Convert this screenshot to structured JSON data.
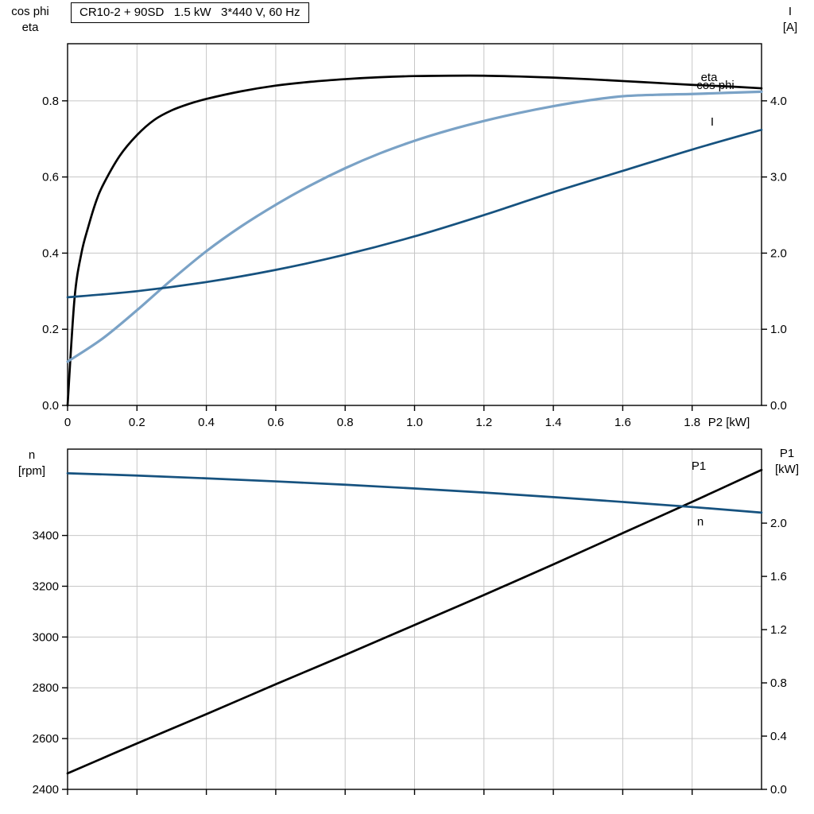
{
  "title_box": {
    "text": "CR10-2 + 90SD   1.5 kW   3*440 V, 60 Hz"
  },
  "axis_corner_labels": {
    "top_left": [
      "cos phi",
      "eta"
    ],
    "top_right": [
      "I",
      "[A]"
    ],
    "bottom_left": [
      "n",
      "[rpm]"
    ],
    "bottom_right": [
      "P1",
      "[kW]"
    ]
  },
  "colors": {
    "black": "#000000",
    "dark_blue": "#16527f",
    "light_blue": "#7aa2c6",
    "grid": "#c6c6c6",
    "frame": "#000000",
    "background": "#ffffff"
  },
  "chart_data": [
    {
      "id": "top",
      "type": "line",
      "title": "CR10-2 + 90SD   1.5 kW   3*440 V, 60 Hz",
      "grid": true,
      "x_axis": {
        "label": "P2 [kW]",
        "min": 0,
        "max": 2.0,
        "ticks": [
          0,
          0.2,
          0.4,
          0.6,
          0.8,
          1.0,
          1.2,
          1.4,
          1.6,
          1.8
        ],
        "tick_labels": [
          "0",
          "0.2",
          "0.4",
          "0.6",
          "0.8",
          "1.0",
          "1.2",
          "1.4",
          "1.6",
          "1.8"
        ]
      },
      "y_left": {
        "label": "cos phi / eta",
        "min": 0,
        "max": 0.95,
        "ticks": [
          0,
          0.2,
          0.4,
          0.6,
          0.8
        ],
        "tick_labels": [
          "0.0",
          "0.2",
          "0.4",
          "0.6",
          "0.8"
        ]
      },
      "y_right": {
        "label": "I [A]",
        "min": 0,
        "max": 4.75,
        "ticks": [
          0,
          1,
          2,
          3,
          4
        ],
        "tick_labels": [
          "0.0",
          "1.0",
          "2.0",
          "3.0",
          "4.0"
        ]
      },
      "series": [
        {
          "name": "eta",
          "axis": "left",
          "color_key": "black",
          "points": [
            [
              0,
              0
            ],
            [
              0.02,
              0.28
            ],
            [
              0.04,
              0.4
            ],
            [
              0.06,
              0.47
            ],
            [
              0.08,
              0.53
            ],
            [
              0.1,
              0.575
            ],
            [
              0.15,
              0.655
            ],
            [
              0.2,
              0.71
            ],
            [
              0.25,
              0.75
            ],
            [
              0.3,
              0.775
            ],
            [
              0.35,
              0.792
            ],
            [
              0.4,
              0.805
            ],
            [
              0.5,
              0.825
            ],
            [
              0.6,
              0.84
            ],
            [
              0.7,
              0.85
            ],
            [
              0.8,
              0.857
            ],
            [
              0.9,
              0.862
            ],
            [
              1.0,
              0.865
            ],
            [
              1.1,
              0.866
            ],
            [
              1.2,
              0.866
            ],
            [
              1.3,
              0.864
            ],
            [
              1.4,
              0.861
            ],
            [
              1.5,
              0.857
            ],
            [
              1.6,
              0.852
            ],
            [
              1.7,
              0.847
            ],
            [
              1.8,
              0.842
            ],
            [
              1.9,
              0.838
            ],
            [
              2.0,
              0.833
            ]
          ]
        },
        {
          "name": "cos phi",
          "axis": "left",
          "color_key": "light_blue",
          "points": [
            [
              0,
              0.115
            ],
            [
              0.1,
              0.175
            ],
            [
              0.2,
              0.25
            ],
            [
              0.3,
              0.33
            ],
            [
              0.4,
              0.405
            ],
            [
              0.5,
              0.47
            ],
            [
              0.6,
              0.527
            ],
            [
              0.7,
              0.578
            ],
            [
              0.8,
              0.623
            ],
            [
              0.9,
              0.662
            ],
            [
              1.0,
              0.695
            ],
            [
              1.1,
              0.723
            ],
            [
              1.2,
              0.747
            ],
            [
              1.3,
              0.768
            ],
            [
              1.4,
              0.786
            ],
            [
              1.5,
              0.801
            ],
            [
              1.6,
              0.812
            ],
            [
              1.7,
              0.816
            ],
            [
              1.8,
              0.818
            ],
            [
              1.9,
              0.821
            ],
            [
              2.0,
              0.824
            ]
          ]
        },
        {
          "name": "I",
          "axis": "right",
          "color_key": "dark_blue",
          "points": [
            [
              0,
              1.42
            ],
            [
              0.2,
              1.5
            ],
            [
              0.4,
              1.62
            ],
            [
              0.6,
              1.78
            ],
            [
              0.8,
              1.98
            ],
            [
              1.0,
              2.22
            ],
            [
              1.2,
              2.5
            ],
            [
              1.4,
              2.8
            ],
            [
              1.6,
              3.08
            ],
            [
              1.8,
              3.36
            ],
            [
              2.0,
              3.62
            ]
          ]
        }
      ]
    },
    {
      "id": "bottom",
      "type": "line",
      "title": "",
      "grid": true,
      "x_axis": {
        "label": "",
        "min": 0,
        "max": 2.0,
        "ticks": [
          0,
          0.2,
          0.4,
          0.6,
          0.8,
          1.0,
          1.2,
          1.4,
          1.6,
          1.8
        ],
        "tick_labels": []
      },
      "y_left": {
        "label": "n [rpm]",
        "min": 2400,
        "max": 3740,
        "ticks": [
          2400,
          2600,
          2800,
          3000,
          3200,
          3400
        ],
        "tick_labels": [
          "2400",
          "2600",
          "2800",
          "3000",
          "3200",
          "3400"
        ]
      },
      "y_right": {
        "label": "P1 [kW]",
        "min": 0,
        "max": 2.556,
        "ticks": [
          0,
          0.4,
          0.8,
          1.2,
          1.6,
          2.0
        ],
        "tick_labels": [
          "0.0",
          "0.4",
          "0.8",
          "1.2",
          "1.6",
          "2.0"
        ]
      },
      "series": [
        {
          "name": "P1",
          "axis": "right",
          "color_key": "black",
          "points": [
            [
              0,
              0.12
            ],
            [
              0.2,
              0.345
            ],
            [
              0.4,
              0.565
            ],
            [
              0.6,
              0.79
            ],
            [
              0.8,
              1.01
            ],
            [
              1.0,
              1.235
            ],
            [
              1.2,
              1.46
            ],
            [
              1.4,
              1.69
            ],
            [
              1.6,
              1.925
            ],
            [
              1.8,
              2.16
            ],
            [
              2.0,
              2.4
            ]
          ]
        },
        {
          "name": "n",
          "axis": "left",
          "color_key": "dark_blue",
          "points": [
            [
              0,
              3645
            ],
            [
              0.2,
              3636
            ],
            [
              0.4,
              3625
            ],
            [
              0.6,
              3613
            ],
            [
              0.8,
              3600
            ],
            [
              1.0,
              3585
            ],
            [
              1.2,
              3569
            ],
            [
              1.4,
              3551
            ],
            [
              1.6,
              3532
            ],
            [
              1.8,
              3512
            ],
            [
              2.0,
              3490
            ]
          ]
        }
      ]
    }
  ]
}
